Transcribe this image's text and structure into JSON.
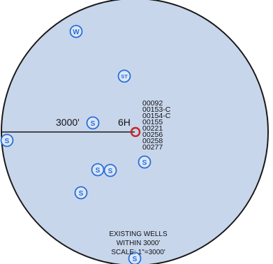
{
  "map": {
    "radius_label": "3000'",
    "subject_well_label": "6H",
    "well_list": [
      "00092",
      "00153-C",
      "00154-C",
      "00155",
      "00221",
      "00256",
      "00258",
      "00277"
    ],
    "markers": [
      {
        "id": "w",
        "label": "W"
      },
      {
        "id": "st",
        "label": "ST"
      },
      {
        "id": "s-center",
        "label": "S"
      },
      {
        "id": "s-left-edge",
        "label": "S"
      },
      {
        "id": "s-right",
        "label": "S"
      },
      {
        "id": "s-pair-left",
        "label": "S"
      },
      {
        "id": "s-pair-right",
        "label": "S"
      },
      {
        "id": "s-lower",
        "label": "S"
      },
      {
        "id": "s-bottom",
        "label": "S"
      }
    ],
    "caption": {
      "line1": "EXISTING WELLS",
      "line2": "WITHIN 3000'",
      "line3": "SCALE: 1\"=3000'"
    },
    "colors": {
      "field": "#c8d6ec",
      "boundary": "#1a1a1a",
      "marker": "#2a6fd6",
      "subject_well": "#c62828"
    }
  }
}
